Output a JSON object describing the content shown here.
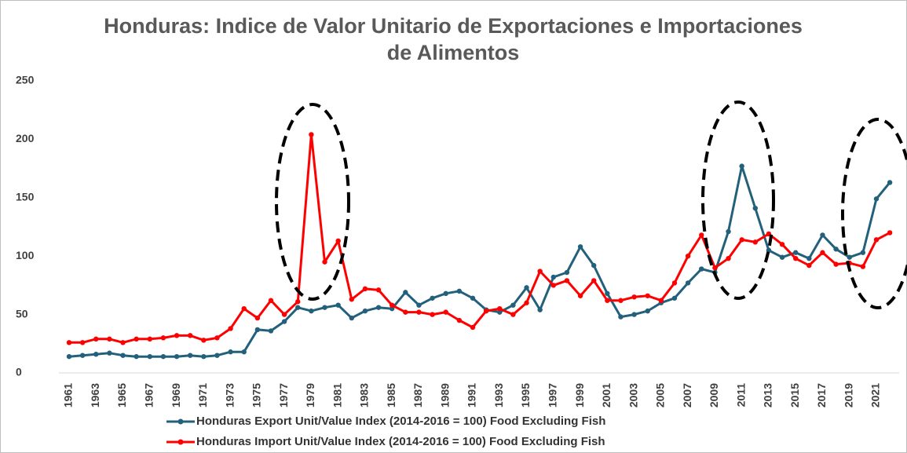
{
  "chart_data": {
    "type": "line",
    "title": "Honduras: Indice de Valor Unitario de Exportaciones e Importaciones de Alimentos",
    "categories": [
      "1961",
      null,
      "1963",
      null,
      "1965",
      null,
      "1967",
      null,
      "1969",
      null,
      "1971",
      null,
      "1973",
      null,
      "1975",
      null,
      "1977",
      null,
      "1979",
      null,
      "1981",
      null,
      "1983",
      null,
      "1985",
      null,
      "1987",
      null,
      "1989",
      null,
      "1991",
      null,
      "1993",
      null,
      "1995",
      null,
      "1997",
      null,
      "1999",
      null,
      "2001",
      null,
      "2003",
      null,
      "2005",
      null,
      "2007",
      null,
      "2009",
      null,
      "2011",
      null,
      "2013",
      null,
      "2015",
      null,
      "2017",
      null,
      "2019",
      null,
      "2021",
      null
    ],
    "series": [
      {
        "name": "Honduras Export Unit/Value Index (2014-2016 = 100) Food Excluding Fish",
        "color": "#23607b",
        "values": [
          14,
          15,
          16,
          17,
          15,
          14,
          14,
          14,
          14,
          15,
          14,
          15,
          18,
          18,
          37,
          36,
          44,
          56,
          53,
          56,
          58,
          47,
          53,
          56,
          55,
          69,
          58,
          64,
          68,
          70,
          64,
          54,
          52,
          58,
          73,
          54,
          82,
          86,
          108,
          92,
          68,
          48,
          50,
          53,
          60,
          64,
          77,
          89,
          86,
          121,
          177,
          141,
          105,
          99,
          103,
          98,
          118,
          106,
          99,
          103,
          149,
          163
        ]
      },
      {
        "name": "Honduras Import Unit/Value Index (2014-2016 = 100) Food Excluding Fish",
        "color": "#ff0000",
        "values": [
          26,
          26,
          29,
          29,
          26,
          29,
          29,
          30,
          32,
          32,
          28,
          30,
          38,
          55,
          47,
          62,
          50,
          61,
          204,
          95,
          113,
          63,
          72,
          71,
          58,
          52,
          52,
          50,
          52,
          45,
          39,
          53,
          55,
          50,
          60,
          87,
          75,
          79,
          66,
          79,
          62,
          62,
          65,
          66,
          62,
          77,
          100,
          118,
          90,
          98,
          114,
          112,
          119,
          110,
          98,
          92,
          103,
          93,
          94,
          91,
          114,
          120
        ]
      }
    ],
    "ylim": [
      0,
      250
    ],
    "yticks": [
      0,
      50,
      100,
      150,
      200,
      250
    ],
    "grid": false,
    "legend": "bottom"
  }
}
